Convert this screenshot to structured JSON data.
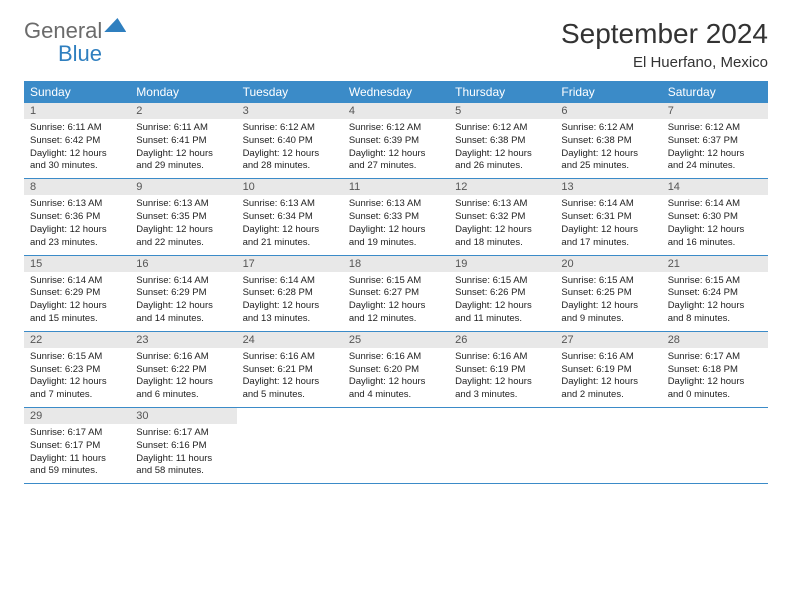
{
  "brand": {
    "general": "General",
    "blue": "Blue"
  },
  "title": "September 2024",
  "location": "El Huerfano, Mexico",
  "colors": {
    "header_bg": "#3b8bc8",
    "header_fg": "#ffffff",
    "daynum_bg": "#e8e8e8",
    "border": "#3b8bc8",
    "text": "#222222",
    "logo_gray": "#6b6b6b",
    "logo_blue": "#2f7fbf"
  },
  "weekdays": [
    "Sunday",
    "Monday",
    "Tuesday",
    "Wednesday",
    "Thursday",
    "Friday",
    "Saturday"
  ],
  "weeks": [
    [
      {
        "n": "1",
        "sr": "6:11 AM",
        "ss": "6:42 PM",
        "dl": "12 hours and 30 minutes."
      },
      {
        "n": "2",
        "sr": "6:11 AM",
        "ss": "6:41 PM",
        "dl": "12 hours and 29 minutes."
      },
      {
        "n": "3",
        "sr": "6:12 AM",
        "ss": "6:40 PM",
        "dl": "12 hours and 28 minutes."
      },
      {
        "n": "4",
        "sr": "6:12 AM",
        "ss": "6:39 PM",
        "dl": "12 hours and 27 minutes."
      },
      {
        "n": "5",
        "sr": "6:12 AM",
        "ss": "6:38 PM",
        "dl": "12 hours and 26 minutes."
      },
      {
        "n": "6",
        "sr": "6:12 AM",
        "ss": "6:38 PM",
        "dl": "12 hours and 25 minutes."
      },
      {
        "n": "7",
        "sr": "6:12 AM",
        "ss": "6:37 PM",
        "dl": "12 hours and 24 minutes."
      }
    ],
    [
      {
        "n": "8",
        "sr": "6:13 AM",
        "ss": "6:36 PM",
        "dl": "12 hours and 23 minutes."
      },
      {
        "n": "9",
        "sr": "6:13 AM",
        "ss": "6:35 PM",
        "dl": "12 hours and 22 minutes."
      },
      {
        "n": "10",
        "sr": "6:13 AM",
        "ss": "6:34 PM",
        "dl": "12 hours and 21 minutes."
      },
      {
        "n": "11",
        "sr": "6:13 AM",
        "ss": "6:33 PM",
        "dl": "12 hours and 19 minutes."
      },
      {
        "n": "12",
        "sr": "6:13 AM",
        "ss": "6:32 PM",
        "dl": "12 hours and 18 minutes."
      },
      {
        "n": "13",
        "sr": "6:14 AM",
        "ss": "6:31 PM",
        "dl": "12 hours and 17 minutes."
      },
      {
        "n": "14",
        "sr": "6:14 AM",
        "ss": "6:30 PM",
        "dl": "12 hours and 16 minutes."
      }
    ],
    [
      {
        "n": "15",
        "sr": "6:14 AM",
        "ss": "6:29 PM",
        "dl": "12 hours and 15 minutes."
      },
      {
        "n": "16",
        "sr": "6:14 AM",
        "ss": "6:29 PM",
        "dl": "12 hours and 14 minutes."
      },
      {
        "n": "17",
        "sr": "6:14 AM",
        "ss": "6:28 PM",
        "dl": "12 hours and 13 minutes."
      },
      {
        "n": "18",
        "sr": "6:15 AM",
        "ss": "6:27 PM",
        "dl": "12 hours and 12 minutes."
      },
      {
        "n": "19",
        "sr": "6:15 AM",
        "ss": "6:26 PM",
        "dl": "12 hours and 11 minutes."
      },
      {
        "n": "20",
        "sr": "6:15 AM",
        "ss": "6:25 PM",
        "dl": "12 hours and 9 minutes."
      },
      {
        "n": "21",
        "sr": "6:15 AM",
        "ss": "6:24 PM",
        "dl": "12 hours and 8 minutes."
      }
    ],
    [
      {
        "n": "22",
        "sr": "6:15 AM",
        "ss": "6:23 PM",
        "dl": "12 hours and 7 minutes."
      },
      {
        "n": "23",
        "sr": "6:16 AM",
        "ss": "6:22 PM",
        "dl": "12 hours and 6 minutes."
      },
      {
        "n": "24",
        "sr": "6:16 AM",
        "ss": "6:21 PM",
        "dl": "12 hours and 5 minutes."
      },
      {
        "n": "25",
        "sr": "6:16 AM",
        "ss": "6:20 PM",
        "dl": "12 hours and 4 minutes."
      },
      {
        "n": "26",
        "sr": "6:16 AM",
        "ss": "6:19 PM",
        "dl": "12 hours and 3 minutes."
      },
      {
        "n": "27",
        "sr": "6:16 AM",
        "ss": "6:19 PM",
        "dl": "12 hours and 2 minutes."
      },
      {
        "n": "28",
        "sr": "6:17 AM",
        "ss": "6:18 PM",
        "dl": "12 hours and 0 minutes."
      }
    ],
    [
      {
        "n": "29",
        "sr": "6:17 AM",
        "ss": "6:17 PM",
        "dl": "11 hours and 59 minutes."
      },
      {
        "n": "30",
        "sr": "6:17 AM",
        "ss": "6:16 PM",
        "dl": "11 hours and 58 minutes."
      },
      null,
      null,
      null,
      null,
      null
    ]
  ],
  "labels": {
    "sunrise": "Sunrise:",
    "sunset": "Sunset:",
    "daylight": "Daylight:"
  }
}
